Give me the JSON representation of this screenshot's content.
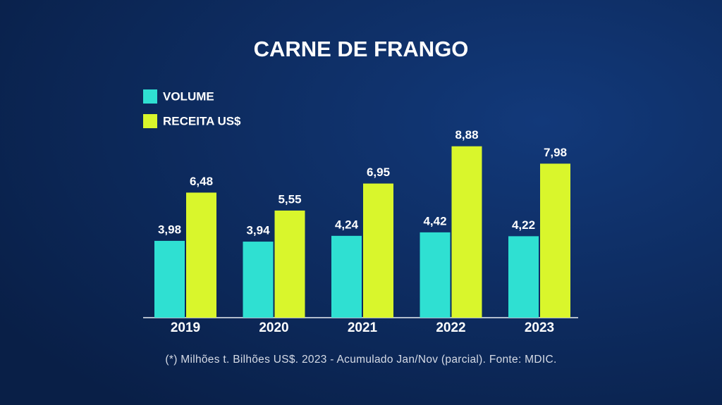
{
  "chart_data": {
    "type": "bar",
    "title": "CARNE DE FRANGO",
    "categories": [
      "2019",
      "2020",
      "2021",
      "2022",
      "2023"
    ],
    "series": [
      {
        "name": "VOLUME",
        "color": "#2fe0d2",
        "values": [
          3.98,
          3.94,
          4.24,
          4.42,
          4.22
        ],
        "value_labels": [
          "3,98",
          "3,94",
          "4,24",
          "4,42",
          "4,22"
        ]
      },
      {
        "name": "RECEITA US$",
        "color": "#d9f62c",
        "values": [
          6.48,
          5.55,
          6.95,
          8.88,
          7.98
        ],
        "value_labels": [
          "6,48",
          "5,55",
          "6,95",
          "8,88",
          "7,98"
        ]
      }
    ],
    "legend": "top-left",
    "note": "(*) Milhões t. Bilhões US$. 2023 - Acumulado Jan/Nov (parcial). Fonte: MDIC."
  }
}
